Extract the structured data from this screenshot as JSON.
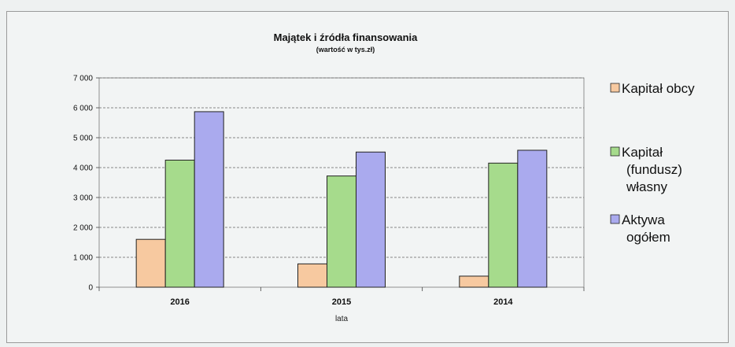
{
  "chart_data": {
    "type": "bar",
    "title": "Majątek i źródła finansowania",
    "subtitle": "(wartość w tys.zł)",
    "xlabel": "lata",
    "ylabel": "",
    "categories": [
      "2016",
      "2015",
      "2014"
    ],
    "ylim": [
      0,
      7000
    ],
    "yticks": [
      0,
      1000,
      2000,
      3000,
      4000,
      5000,
      6000,
      7000
    ],
    "ytick_labels": [
      "0",
      "1 000",
      "2 000",
      "3 000",
      "4 000",
      "5 000",
      "6 000",
      "7 000"
    ],
    "grid": "horizontal dashed",
    "legend_position": "right",
    "series": [
      {
        "name": "Kapitał obcy",
        "legend_lines": [
          "Kapitał obcy"
        ],
        "color": "#f7c9a0",
        "values": [
          1600,
          780,
          370
        ]
      },
      {
        "name": "Kapitał (fundusz) własny",
        "legend_lines": [
          "Kapitał",
          "(fundusz)",
          "własny"
        ],
        "color": "#a6db8c",
        "values": [
          4250,
          3720,
          4150
        ]
      },
      {
        "name": "Aktywa ogółem",
        "legend_lines": [
          "Aktywa",
          "ogółem"
        ],
        "color": "#aaaaee",
        "values": [
          5870,
          4520,
          4580
        ]
      }
    ]
  }
}
